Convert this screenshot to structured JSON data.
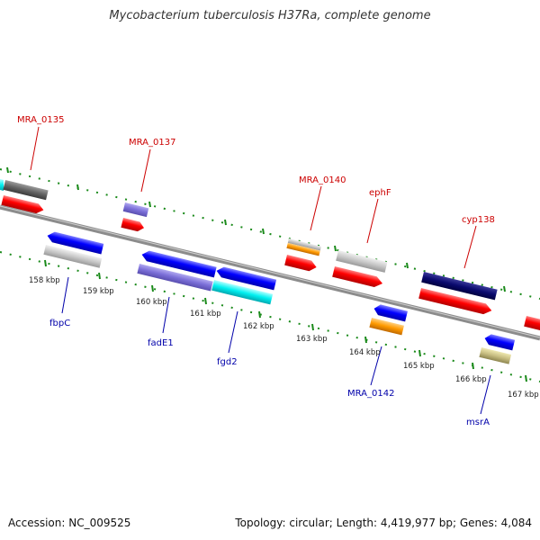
{
  "title": "Mycobacterium tuberculosis H37Ra, complete genome",
  "accession": "Accession: NC_009525",
  "stats": "Topology: circular; Length: 4,419,977 bp; Genes: 4,084",
  "colors": {
    "backbone": "#8c8c8c",
    "tick": "#1a8a1a",
    "forward_label": "#cc0000",
    "reverse_label": "#0000aa"
  },
  "tick_labels": [
    "158 kbp",
    "159 kbp",
    "160 kbp",
    "161 kbp",
    "162 kbp",
    "163 kbp",
    "164 kbp",
    "165 kbp",
    "166 kbp",
    "167 kbp"
  ],
  "forward_labels": [
    "MRA_0135",
    "MRA_0137",
    "MRA_0140",
    "ephF",
    "cyp138"
  ],
  "reverse_labels": [
    "fbpC",
    "fadE1",
    "fgd2",
    "MRA_0142",
    "msrA"
  ]
}
